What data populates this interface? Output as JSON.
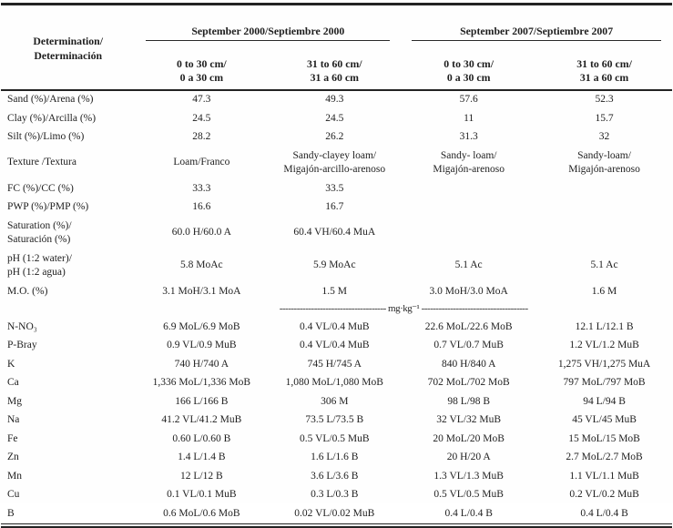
{
  "page": {
    "background": "#fefefe",
    "text_color": "#1e1e1e",
    "rule_color": "#232323"
  },
  "table": {
    "determination_header": "Determination/\nDeterminación",
    "groups": [
      {
        "label": "September 2000/Septiembre 2000"
      },
      {
        "label": "September 2007/Septiembre 2007"
      }
    ],
    "depth_headers": [
      "0 to 30 cm/\n0 a 30 cm",
      "31 to 60 cm/\n31 a 60 cm",
      "0 to 30 cm/\n0 a 30 cm",
      "31 to 60 cm/\n31 a 60 cm"
    ],
    "unit_divider": "------------------------------------- mg·kg⁻¹ -------------------------------------",
    "rows": [
      {
        "label": "Sand (%)/Arena (%)",
        "values": [
          "47.3",
          "49.3",
          "57.6",
          "52.3"
        ]
      },
      {
        "label": "Clay (%)/Arcilla (%)",
        "values": [
          "24.5",
          "24.5",
          "11",
          "15.7"
        ]
      },
      {
        "label": "Silt (%)/Limo (%)",
        "values": [
          "28.2",
          "26.2",
          "31.3",
          "32"
        ]
      },
      {
        "label": "Texture /Textura",
        "values": [
          "Loam/Franco",
          "Sandy-clayey loam/\nMigajón-arcillo-arenoso",
          "Sandy- loam/\nMigajón-arenoso",
          "Sandy-loam/\nMigajón-arenoso"
        ]
      },
      {
        "label": "FC (%)/CC (%)",
        "values": [
          "33.3",
          "33.5",
          "",
          ""
        ]
      },
      {
        "label": "PWP (%)/PMP (%)",
        "values": [
          "16.6",
          "16.7",
          "",
          ""
        ]
      },
      {
        "label": "Saturation (%)/\nSaturación (%)",
        "values": [
          "60.0 H/60.0 A",
          "60.4 VH/60.4 MuA",
          "",
          ""
        ]
      },
      {
        "label": "pH (1:2 water)/\npH (1:2 agua)",
        "values": [
          "5.8 MoAc",
          "5.9 MoAc",
          "5.1 Ac",
          "5.1 Ac"
        ]
      },
      {
        "label": "M.O. (%)",
        "values": [
          "3.1 MoH/3.1 MoA",
          "1.5 M",
          "3.0 MoH/3.0 MoA",
          "1.6 M"
        ]
      },
      {
        "label": "N-NO₃",
        "values": [
          "6.9 MoL/6.9 MoB",
          "0.4 VL/0.4 MuB",
          "22.6 MoL/22.6 MoB",
          "12.1 L/12.1 B"
        ]
      },
      {
        "label": "P-Bray",
        "values": [
          "0.9 VL/0.9 MuB",
          "0.4 VL/0.4 MuB",
          "0.7 VL/0.7 MuB",
          "1.2 VL/1.2 MuB"
        ]
      },
      {
        "label": "K",
        "values": [
          "740 H/740 A",
          "745 H/745 A",
          "840 H/840 A",
          "1,275 VH/1,275 MuA"
        ]
      },
      {
        "label": "Ca",
        "values": [
          "1,336 MoL/1,336 MoB",
          "1,080 MoL/1,080 MoB",
          "702 MoL/702 MoB",
          "797 MoL/797 MoB"
        ]
      },
      {
        "label": "Mg",
        "values": [
          "166 L/166 B",
          "306 M",
          "98 L/98 B",
          "94 L/94 B"
        ]
      },
      {
        "label": "Na",
        "values": [
          "41.2 VL/41.2 MuB",
          "73.5 L/73.5 B",
          "32 VL/32 MuB",
          "45 VL/45 MuB"
        ]
      },
      {
        "label": "Fe",
        "values": [
          "0.60 L/0.60 B",
          "0.5 VL/0.5 MuB",
          "20 MoL/20 MoB",
          "15 MoL/15 MoB"
        ]
      },
      {
        "label": "Zn",
        "values": [
          "1.4 L/1.4 B",
          "1.6 L/1.6 B",
          "20 H/20 A",
          "2.7 MoL/2.7 MoB"
        ]
      },
      {
        "label": "Mn",
        "values": [
          "12 L/12 B",
          "3.6 L/3.6 B",
          "1.3 VL/1.3 MuB",
          "1.1 VL/1.1 MuB"
        ]
      },
      {
        "label": "Cu",
        "values": [
          "0.1 VL/0.1 MuB",
          "0.3 L/0.3 B",
          "0.5 VL/0.5 MuB",
          "0.2 VL/0.2 MuB"
        ]
      },
      {
        "label": "B",
        "values": [
          "0.6 MoL/0.6 MoB",
          "0.02 VL/0.02 MuB",
          "0.4 L/0.4 B",
          "0.4 L/0.4 B"
        ]
      }
    ]
  }
}
